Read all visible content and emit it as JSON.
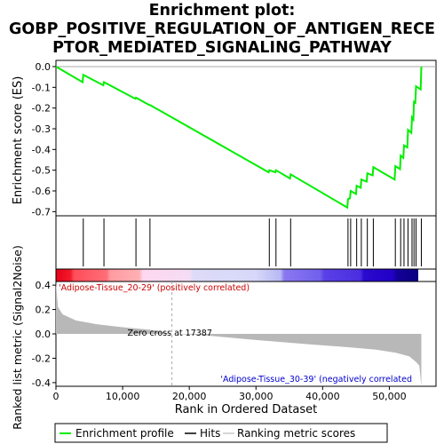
{
  "title_lines": [
    "Enrichment plot:",
    "GOBP_POSITIVE_REGULATION_OF_ANTIGEN_RECE",
    "PTOR_MEDIATED_SIGNALING_PATHWAY"
  ],
  "colors": {
    "enrichment_line": "#00ee00",
    "hits": "#000000",
    "ranking_fill": "#b8b8b8",
    "zero_line": "#aaaaaa",
    "positive_label": "#cc0000",
    "negative_label": "#0000cc"
  },
  "chart_data": {
    "type": "line",
    "x_range": [
      0,
      57000
    ],
    "n_genes": 54500,
    "es_panel": {
      "ylabel": "Enrichment score (ES)",
      "ylim": [
        -0.72,
        0.03
      ],
      "yticks": [
        0.0,
        -0.1,
        -0.2,
        -0.3,
        -0.4,
        -0.5,
        -0.6,
        -0.7
      ],
      "ytick_labels": [
        "0.0",
        "-0.1",
        "-0.2",
        "-0.3",
        "-0.4",
        "-0.5",
        "-0.6",
        "-0.7"
      ],
      "series_name": "Enrichment profile",
      "points": [
        [
          0,
          0.0
        ],
        [
          4000,
          -0.075
        ],
        [
          4100,
          -0.04
        ],
        [
          7100,
          -0.09
        ],
        [
          7200,
          -0.075
        ],
        [
          11900,
          -0.155
        ],
        [
          12000,
          -0.15
        ],
        [
          14000,
          -0.185
        ],
        [
          14100,
          -0.185
        ],
        [
          31900,
          -0.51
        ],
        [
          32000,
          -0.5
        ],
        [
          32900,
          -0.51
        ],
        [
          33000,
          -0.5
        ],
        [
          35100,
          -0.54
        ],
        [
          35200,
          -0.52
        ],
        [
          43700,
          -0.68
        ],
        [
          43800,
          -0.64
        ],
        [
          44100,
          -0.635
        ],
        [
          44200,
          -0.6
        ],
        [
          45000,
          -0.615
        ],
        [
          45100,
          -0.575
        ],
        [
          45700,
          -0.585
        ],
        [
          45800,
          -0.545
        ],
        [
          46600,
          -0.555
        ],
        [
          46700,
          -0.515
        ],
        [
          47500,
          -0.525
        ],
        [
          47600,
          -0.485
        ],
        [
          50800,
          -0.545
        ],
        [
          50900,
          -0.48
        ],
        [
          51600,
          -0.495
        ],
        [
          51700,
          -0.43
        ],
        [
          52100,
          -0.44
        ],
        [
          52200,
          -0.38
        ],
        [
          52700,
          -0.39
        ],
        [
          52800,
          -0.305
        ],
        [
          53300,
          -0.32
        ],
        [
          53400,
          -0.245
        ],
        [
          53600,
          -0.255
        ],
        [
          53700,
          -0.17
        ],
        [
          53900,
          -0.175
        ],
        [
          54000,
          -0.095
        ],
        [
          54700,
          -0.11
        ],
        [
          54800,
          0.0
        ]
      ]
    },
    "hits": [
      4100,
      7200,
      12000,
      14100,
      32000,
      33000,
      35200,
      43800,
      44200,
      45100,
      45800,
      46700,
      47600,
      50900,
      51700,
      52200,
      52800,
      53400,
      53700,
      54000,
      54800
    ],
    "rank_panel": {
      "ylabel": "Ranked list metric (Signal2Noise)",
      "xlabel": "Rank in Ordered Dataset",
      "ylim": [
        -0.43,
        0.43
      ],
      "yticks": [
        0.4,
        0.2,
        0.0,
        -0.2,
        -0.4
      ],
      "ytick_labels": [
        "0.4",
        "0.2",
        "0.0",
        "-0.2",
        "-0.4"
      ],
      "xticks": [
        0,
        10000,
        20000,
        30000,
        40000,
        50000
      ],
      "xtick_labels": [
        "0",
        "10,000",
        "20,000",
        "30,000",
        "40,000",
        "50,000"
      ],
      "metric_points": [
        [
          0,
          0.42
        ],
        [
          300,
          0.22
        ],
        [
          1000,
          0.16
        ],
        [
          3000,
          0.11
        ],
        [
          6000,
          0.08
        ],
        [
          10000,
          0.055
        ],
        [
          14000,
          0.035
        ],
        [
          17387,
          0.0
        ],
        [
          22000,
          -0.01
        ],
        [
          30000,
          -0.05
        ],
        [
          38000,
          -0.085
        ],
        [
          44000,
          -0.11
        ],
        [
          48000,
          -0.13
        ],
        [
          51000,
          -0.155
        ],
        [
          53000,
          -0.185
        ],
        [
          54000,
          -0.23
        ],
        [
          54500,
          -0.26
        ],
        [
          54800,
          -0.43
        ]
      ],
      "zero_cross": 17387,
      "zero_cross_label": "Zero cross at 17387",
      "positive_label": "'Adipose-Tissue_20-29' (positively correlated)",
      "negative_label": "'Adipose-Tissue_30-39' (negatively correlated"
    },
    "legend": [
      {
        "label": "Enrichment profile",
        "color": "#00ee00"
      },
      {
        "label": "Hits",
        "color": "#000000"
      },
      {
        "label": "Ranking metric scores",
        "color": "#c8c8c8"
      }
    ]
  }
}
